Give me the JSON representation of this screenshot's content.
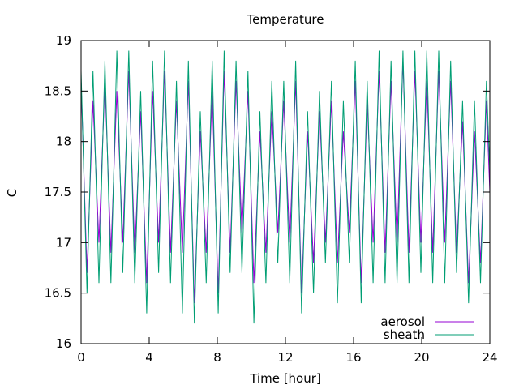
{
  "chart_data": {
    "type": "line",
    "title": "Temperature",
    "xlabel": "Time [hour]",
    "ylabel": "C",
    "xlim": [
      0,
      24
    ],
    "ylim": [
      16,
      19
    ],
    "xticks": [
      0,
      4,
      8,
      12,
      16,
      20,
      24
    ],
    "yticks": [
      16,
      16.5,
      17,
      17.5,
      18,
      18.5,
      19
    ],
    "grid": false,
    "legend_position": "bottom-right",
    "series": [
      {
        "name": "aerosol",
        "color": "#9400d3",
        "x": [
          0,
          0.35,
          0.7,
          1.05,
          1.4,
          1.75,
          2.1,
          2.45,
          2.8,
          3.15,
          3.5,
          3.85,
          4.2,
          4.55,
          4.9,
          5.25,
          5.6,
          5.95,
          6.3,
          6.65,
          7.0,
          7.35,
          7.7,
          8.05,
          8.4,
          8.75,
          9.1,
          9.45,
          9.8,
          10.15,
          10.5,
          10.85,
          11.2,
          11.55,
          11.9,
          12.25,
          12.6,
          12.95,
          13.3,
          13.65,
          14.0,
          14.35,
          14.7,
          15.05,
          15.4,
          15.75,
          16.1,
          16.45,
          16.8,
          17.15,
          17.5,
          17.85,
          18.2,
          18.55,
          18.9,
          19.25,
          19.6,
          19.95,
          20.3,
          20.65,
          21.0,
          21.35,
          21.7,
          22.05,
          22.4,
          22.75,
          23.1,
          23.45,
          23.8,
          24
        ],
        "y": [
          18.6,
          16.7,
          18.4,
          17.0,
          18.6,
          16.9,
          18.5,
          17.0,
          18.7,
          16.9,
          18.3,
          16.6,
          18.5,
          17.0,
          18.7,
          16.9,
          18.4,
          16.9,
          18.6,
          16.4,
          18.1,
          16.9,
          18.5,
          16.5,
          18.7,
          16.9,
          18.6,
          17.1,
          18.5,
          16.6,
          18.1,
          16.9,
          18.3,
          17.1,
          18.4,
          17.0,
          18.6,
          16.5,
          18.1,
          16.8,
          18.3,
          17.0,
          18.4,
          16.8,
          18.1,
          17.1,
          18.6,
          16.6,
          18.4,
          17.0,
          18.7,
          16.9,
          18.6,
          17.0,
          18.8,
          16.9,
          18.7,
          17.0,
          18.6,
          16.9,
          18.7,
          17.0,
          18.6,
          16.9,
          18.2,
          16.6,
          18.1,
          16.8,
          18.4,
          17.5
        ]
      },
      {
        "name": "sheath",
        "color": "#009e73",
        "x": [
          0,
          0.35,
          0.7,
          1.05,
          1.4,
          1.75,
          2.1,
          2.45,
          2.8,
          3.15,
          3.5,
          3.85,
          4.2,
          4.55,
          4.9,
          5.25,
          5.6,
          5.95,
          6.3,
          6.65,
          7.0,
          7.35,
          7.7,
          8.05,
          8.4,
          8.75,
          9.1,
          9.45,
          9.8,
          10.15,
          10.5,
          10.85,
          11.2,
          11.55,
          11.9,
          12.25,
          12.6,
          12.95,
          13.3,
          13.65,
          14.0,
          14.35,
          14.7,
          15.05,
          15.4,
          15.75,
          16.1,
          16.45,
          16.8,
          17.15,
          17.5,
          17.85,
          18.2,
          18.55,
          18.9,
          19.25,
          19.6,
          19.95,
          20.3,
          20.65,
          21.0,
          21.35,
          21.7,
          22.05,
          22.4,
          22.75,
          23.1,
          23.45,
          23.8,
          24
        ],
        "y": [
          18.7,
          16.5,
          18.7,
          16.6,
          18.8,
          16.6,
          18.9,
          16.7,
          18.9,
          16.6,
          18.5,
          16.3,
          18.8,
          16.7,
          18.9,
          16.6,
          18.6,
          16.3,
          18.8,
          16.2,
          18.3,
          16.6,
          18.8,
          16.3,
          18.9,
          16.7,
          18.8,
          16.7,
          18.7,
          16.2,
          18.3,
          16.6,
          18.6,
          16.8,
          18.6,
          16.6,
          18.8,
          16.3,
          18.3,
          16.5,
          18.5,
          16.8,
          18.6,
          16.4,
          18.4,
          16.8,
          18.8,
          16.4,
          18.6,
          16.6,
          18.9,
          16.6,
          18.8,
          16.6,
          18.9,
          16.6,
          18.9,
          16.7,
          18.9,
          16.6,
          18.9,
          16.6,
          18.8,
          16.7,
          18.4,
          16.4,
          18.4,
          16.6,
          18.6,
          17.7
        ]
      }
    ]
  }
}
